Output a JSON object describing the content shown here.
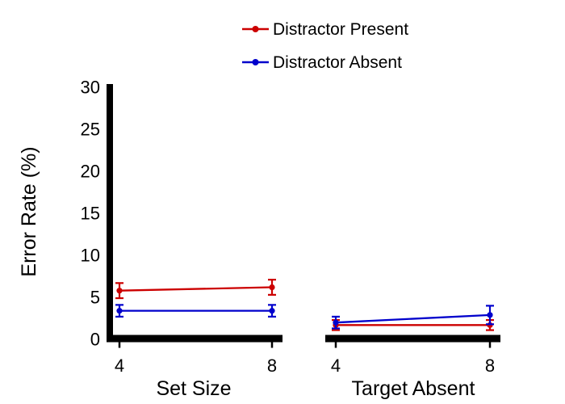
{
  "figure": {
    "background": "#ffffff",
    "axis_color": "#000000"
  },
  "chart_data": {
    "type": "line",
    "title": "",
    "ylabel": "Error Rate (%)",
    "ylim": [
      0,
      30
    ],
    "yticks": [
      0,
      5,
      10,
      15,
      20,
      25,
      30
    ],
    "grid": false,
    "error_bars": true,
    "legend_position": "top-center",
    "legend": [
      {
        "label": "Distractor Present",
        "color": "#cc0000",
        "marker": "circle"
      },
      {
        "label": "Distractor Absent",
        "color": "#0000cc",
        "marker": "circle"
      }
    ],
    "panels": [
      {
        "xlabel": "Set Size",
        "categories": [
          "4",
          "8"
        ],
        "x": [
          4,
          8
        ],
        "series": [
          {
            "name": "Distractor Present",
            "color": "#cc0000",
            "values": [
              5.8,
              6.2
            ],
            "errors": [
              0.9,
              0.9
            ]
          },
          {
            "name": "Distractor Absent",
            "color": "#0000cc",
            "values": [
              3.4,
              3.4
            ],
            "errors": [
              0.7,
              0.7
            ]
          }
        ]
      },
      {
        "xlabel": "Target Absent",
        "categories": [
          "4",
          "8"
        ],
        "x": [
          4,
          8
        ],
        "series": [
          {
            "name": "Distractor Present",
            "color": "#cc0000",
            "values": [
              1.7,
              1.7
            ],
            "errors": [
              0.6,
              0.6
            ]
          },
          {
            "name": "Distractor Absent",
            "color": "#0000cc",
            "values": [
              2.0,
              2.9
            ],
            "errors": [
              0.7,
              1.1
            ]
          }
        ]
      }
    ]
  }
}
